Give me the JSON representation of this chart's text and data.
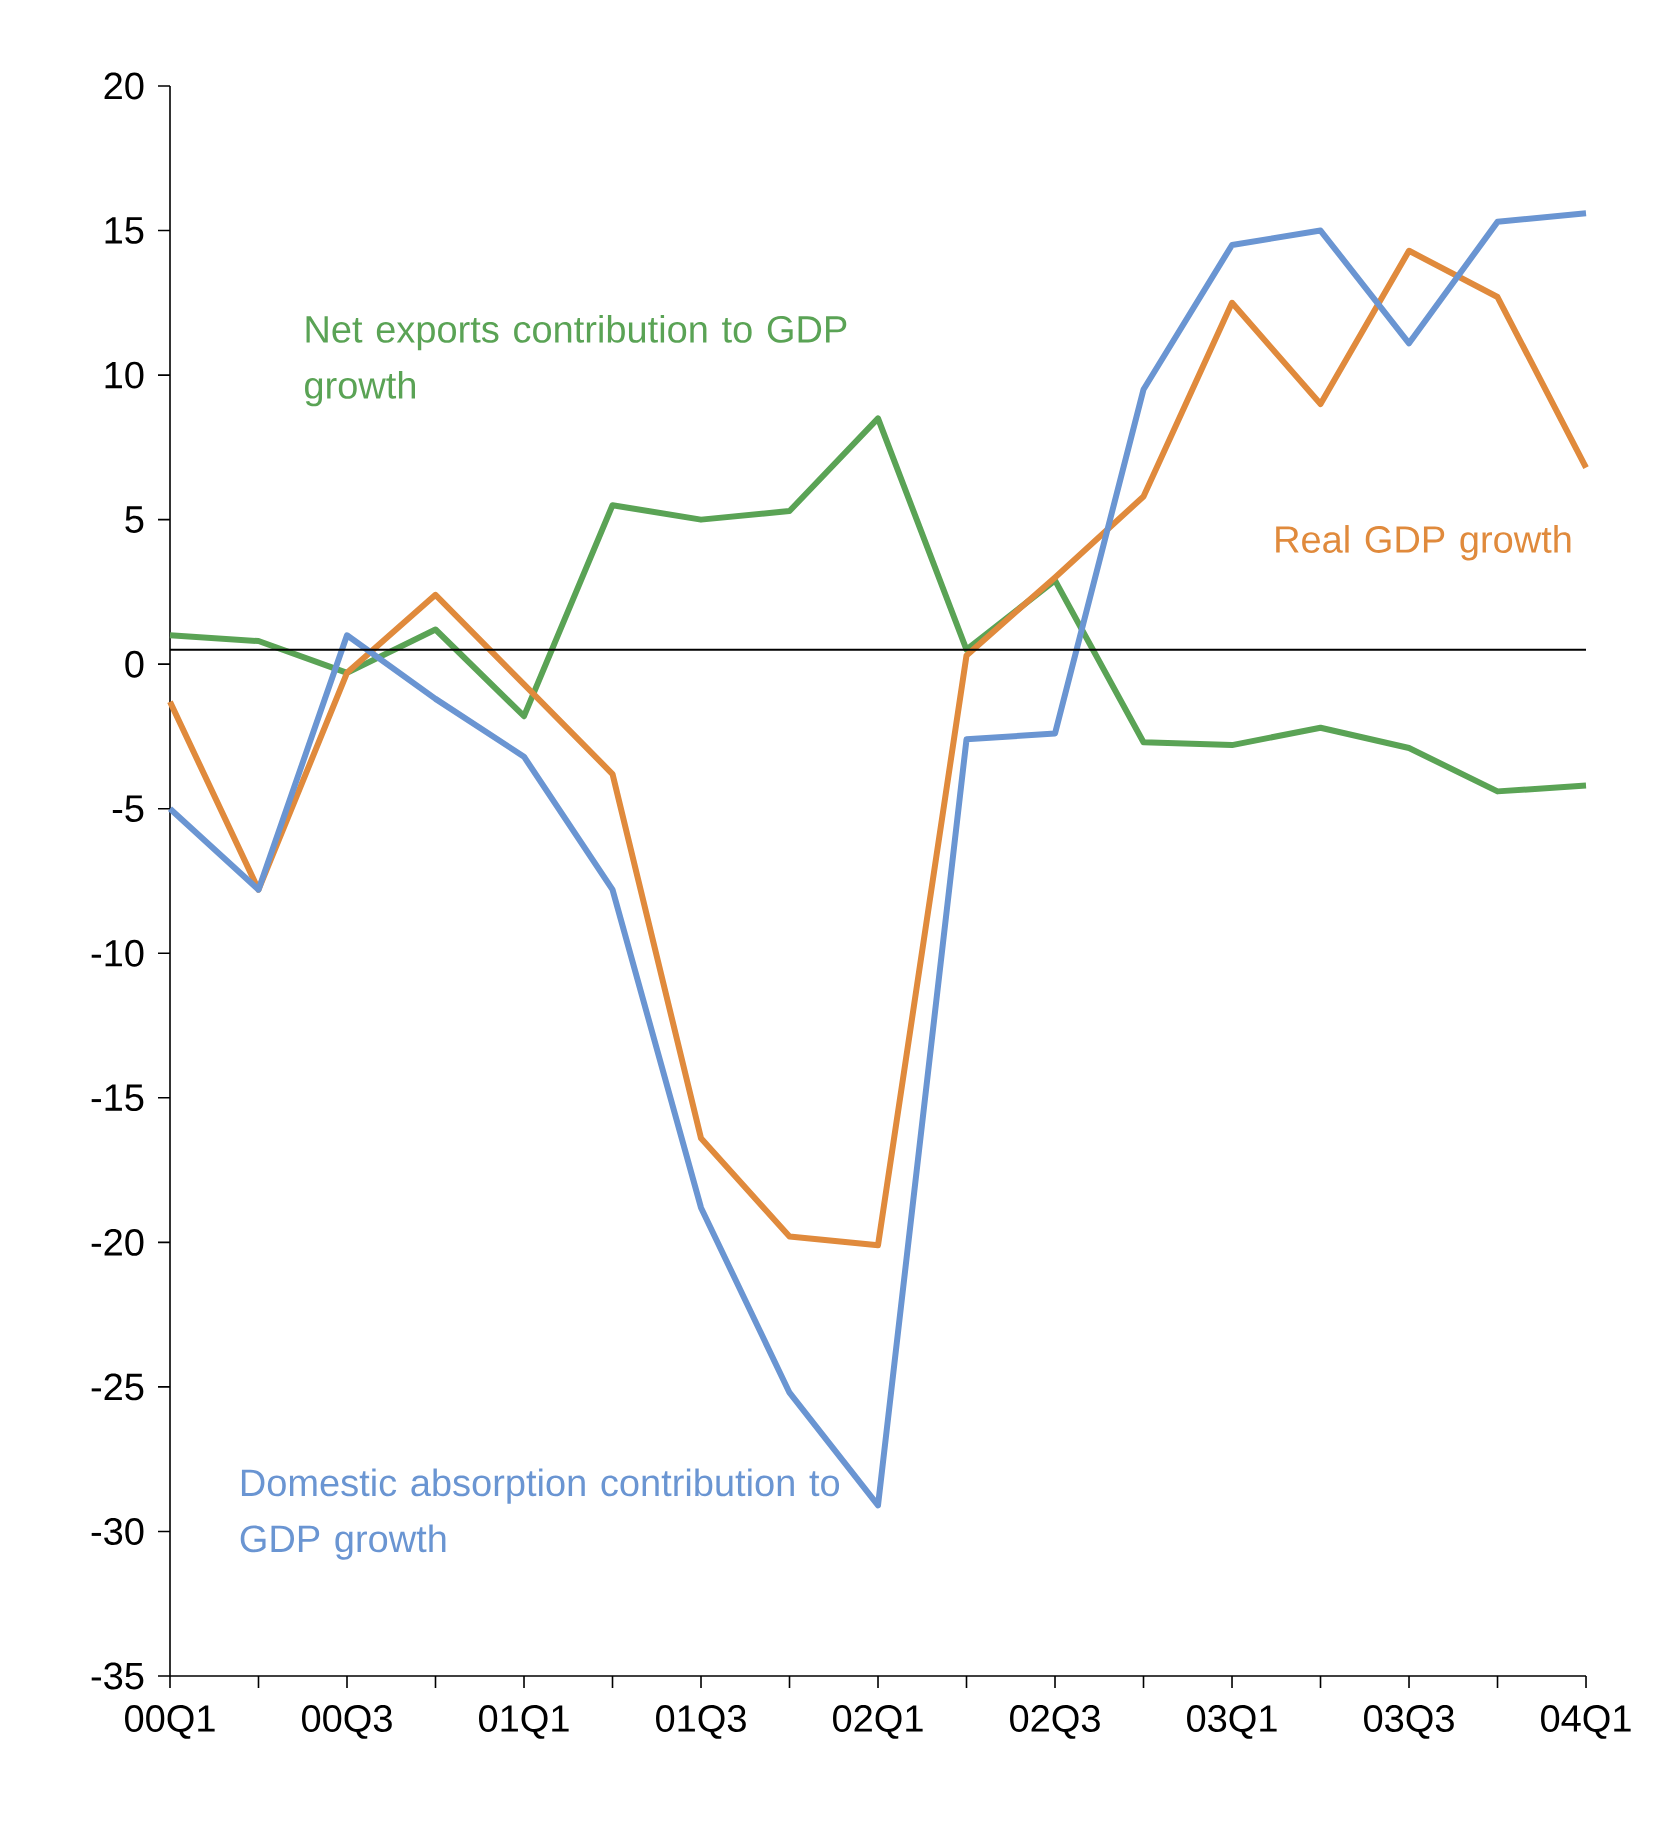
{
  "chart_data": {
    "type": "line",
    "categories": [
      "00Q1",
      null,
      "00Q3",
      null,
      "01Q1",
      null,
      "01Q3",
      null,
      "02Q1",
      null,
      "02Q3",
      null,
      "03Q1",
      null,
      "03Q3",
      null,
      "04Q1"
    ],
    "series": [
      {
        "name": "Net exports contribution to GDP growth",
        "color": "#5aa355",
        "values": [
          1.0,
          0.8,
          -0.3,
          1.2,
          -1.8,
          5.5,
          5.0,
          5.3,
          8.5,
          0.5,
          2.9,
          -2.7,
          -2.8,
          -2.2,
          -2.9,
          -4.4,
          -4.2
        ]
      },
      {
        "name": "Real GDP growth",
        "color": "#e08a3c",
        "values": [
          -1.3,
          -7.8,
          -0.3,
          2.4,
          -0.7,
          -3.8,
          -16.4,
          -19.8,
          -20.1,
          0.3,
          3.0,
          5.8,
          12.5,
          9.0,
          14.3,
          12.7,
          6.8
        ]
      },
      {
        "name": "Domestic absorption contribution to GDP growth",
        "color": "#6a95d2",
        "values": [
          -5.0,
          -7.8,
          1.0,
          -1.2,
          -3.2,
          -7.8,
          -18.8,
          -25.2,
          -29.1,
          -2.6,
          -2.4,
          9.5,
          14.5,
          15.0,
          11.1,
          15.3,
          15.6
        ]
      }
    ],
    "ylim": [
      -35,
      20
    ],
    "yticks": [
      -35,
      -30,
      -25,
      -20,
      -15,
      -10,
      -5,
      0,
      5,
      10,
      15,
      20
    ],
    "ref_lines": [
      {
        "axis": "y",
        "value": 0.5,
        "color": "#000000"
      }
    ],
    "grid": false,
    "legend": false,
    "marker": "none",
    "line_style": "solid"
  }
}
